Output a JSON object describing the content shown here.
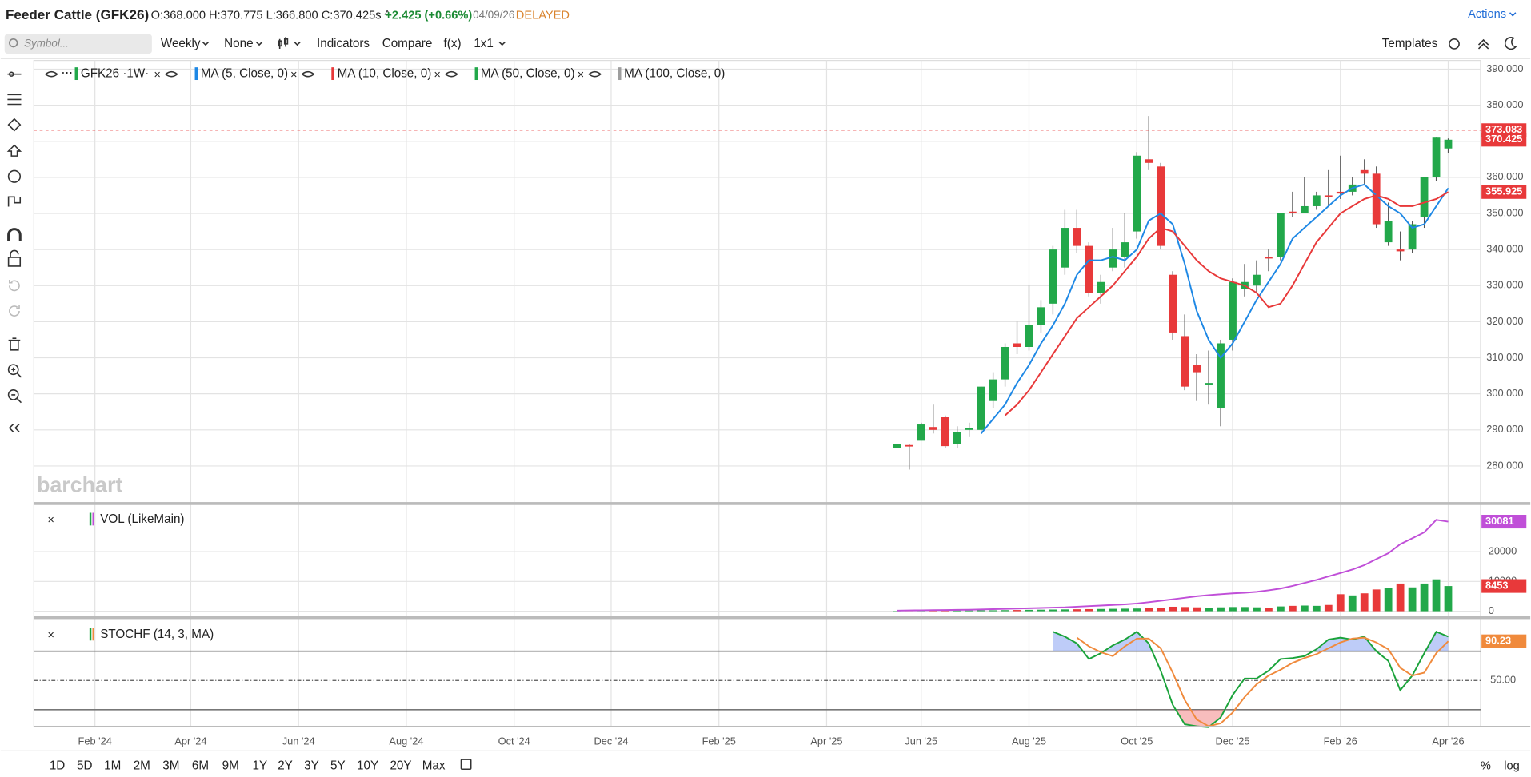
{
  "header": {
    "title": "Feeder Cattle (GFK26)",
    "ohlc": "O:368.000 H:370.775 L:366.800 C:370.425s ^",
    "change": "+2.425 (+0.66%)",
    "date": "04/09/26",
    "status": "DELAYED",
    "actions": "Actions"
  },
  "toolbar": {
    "symbol": "Symbol...",
    "interval": "Weekly",
    "style": "None",
    "indicators": "Indicators",
    "compare": "Compare",
    "fx": "f(x)",
    "layout": "1x1",
    "templates": "Templates"
  },
  "periods": [
    "1D",
    "5D",
    "1M",
    "2M",
    "3M",
    "6M",
    "9M",
    "1Y",
    "2Y",
    "3Y",
    "5Y",
    "10Y",
    "20Y",
    "Max"
  ],
  "scale_options": [
    "%",
    "log"
  ],
  "watermark": "barchart",
  "chart_data": [
    {
      "type": "candlestick",
      "symbol": "GFK26 ·1W·",
      "up_color": "#22a84a",
      "down_color": "#e8393a",
      "open": [
        285,
        285.8,
        287,
        290.8,
        293.5,
        286,
        290,
        290,
        298,
        304,
        314,
        313,
        319,
        325,
        335,
        346,
        341,
        328,
        335,
        338,
        345,
        365,
        363,
        333,
        316,
        308,
        303,
        296,
        315,
        329,
        330,
        338,
        338,
        350.5,
        350,
        352,
        355,
        356,
        356,
        362,
        361,
        342,
        340,
        340,
        349,
        360,
        368
      ],
      "high": [
        286,
        286,
        292,
        297,
        294,
        291,
        292,
        302,
        306,
        314,
        320,
        330,
        326,
        341,
        351,
        351,
        342,
        333,
        346,
        350,
        367,
        377,
        364,
        334,
        322,
        311,
        312,
        315,
        332,
        336,
        337,
        340,
        350,
        356,
        360,
        356,
        362,
        366,
        360,
        365,
        363,
        353,
        345,
        348,
        360,
        371,
        370.775
      ],
      "low": [
        285,
        279,
        287,
        289,
        285,
        285,
        288,
        289,
        296,
        302,
        311,
        312,
        317,
        322,
        333,
        339,
        327,
        325,
        334,
        335,
        343,
        362,
        340,
        315,
        301,
        298,
        297,
        291,
        312,
        327,
        328,
        334,
        337,
        349,
        350,
        351,
        352,
        354,
        355,
        358,
        346,
        341,
        337,
        339,
        346,
        359,
        366.8
      ],
      "close": [
        286,
        285.6,
        291.5,
        290,
        285.5,
        289.5,
        290.5,
        302,
        304,
        313,
        313,
        319,
        324,
        340,
        346,
        341,
        328,
        331,
        340,
        342,
        366,
        364,
        341,
        317,
        302,
        306,
        303,
        314,
        331,
        331,
        333,
        337.5,
        350,
        350,
        352,
        355,
        354.5,
        355.5,
        358,
        361,
        347,
        348,
        339.5,
        347,
        360,
        371,
        370.425
      ],
      "close_label": "370.425",
      "series": [
        {
          "name": "MA (5, Close, 0)",
          "color": "#1e88e5",
          "values": [
            null,
            null,
            null,
            null,
            null,
            null,
            null,
            289,
            293,
            297,
            303,
            308,
            314,
            319,
            325,
            333,
            337,
            337,
            338,
            337,
            340,
            348,
            350,
            347,
            336,
            323,
            315,
            310,
            314,
            320,
            326,
            331,
            336,
            343,
            346,
            349,
            352,
            355,
            357,
            358,
            355,
            352,
            350,
            346,
            347,
            352,
            357
          ]
        },
        {
          "name": "MA (10, Close, 0)",
          "color": "#e8393a",
          "values": [
            null,
            null,
            null,
            null,
            null,
            null,
            null,
            null,
            null,
            294,
            297,
            301,
            306,
            311,
            316,
            321,
            324,
            327,
            330,
            334,
            338,
            343,
            346,
            345,
            341,
            337,
            334,
            332,
            331,
            330,
            328,
            324,
            325,
            330,
            336,
            342,
            346,
            350,
            352,
            354,
            355,
            354,
            352,
            352,
            353,
            354,
            355.925
          ],
          "last_label": "355.925"
        }
      ],
      "legend_extra": [
        {
          "name": "MA (50, Close, 0)",
          "color": "#22a84a"
        },
        {
          "name": "MA (100, Close, 0)",
          "color": "#9e9e9e"
        }
      ],
      "marker": {
        "value": 373.083,
        "label": "373.083",
        "color": "#e8393a"
      },
      "xlim": [
        -72.1,
        48.7
      ],
      "xticks": [
        {
          "value": -67,
          "label": "Feb '24"
        },
        {
          "value": -59,
          "label": "Apr '24"
        },
        {
          "value": -50,
          "label": "Jun '24"
        },
        {
          "value": -41,
          "label": "Aug '24"
        },
        {
          "value": -32,
          "label": "Oct '24"
        },
        {
          "value": -23.9,
          "label": "Dec '24"
        },
        {
          "value": -14.9,
          "label": "Feb '25"
        },
        {
          "value": -5.9,
          "label": "Apr '25"
        },
        {
          "value": 2,
          "label": "Jun '25"
        },
        {
          "value": 11,
          "label": "Aug '25"
        },
        {
          "value": 20,
          "label": "Oct '25"
        },
        {
          "value": 28,
          "label": "Dec '25"
        },
        {
          "value": 37,
          "label": "Feb '26"
        },
        {
          "value": 46,
          "label": "Apr '26"
        }
      ],
      "ylim": [
        270,
        392.4
      ],
      "yticks": [
        {
          "value": 280,
          "label": "280.000"
        },
        {
          "value": 290,
          "label": "290.000"
        },
        {
          "value": 300,
          "label": "300.000"
        },
        {
          "value": 310,
          "label": "310.000"
        },
        {
          "value": 320,
          "label": "320.000"
        },
        {
          "value": 330,
          "label": "330.000"
        },
        {
          "value": 340,
          "label": "340.000"
        },
        {
          "value": 350,
          "label": "350.000"
        },
        {
          "value": 360,
          "label": "360.000"
        },
        {
          "value": 370,
          "label": "370.000"
        },
        {
          "value": 380,
          "label": "380.000"
        },
        {
          "value": 390,
          "label": "390.000"
        }
      ],
      "grid": true
    },
    {
      "type": "bar",
      "title": "VOL (LikeMain)",
      "values": [
        100,
        150,
        150,
        200,
        200,
        250,
        250,
        300,
        300,
        350,
        400,
        450,
        500,
        550,
        600,
        650,
        700,
        750,
        800,
        850,
        900,
        1000,
        1200,
        1500,
        1400,
        1300,
        1200,
        1300,
        1400,
        1400,
        1300,
        1200,
        1600,
        1800,
        1900,
        1800,
        2100,
        5700,
        5300,
        6000,
        7300,
        7700,
        9300,
        8000,
        9300,
        10700,
        8453
      ],
      "last_label": "8453",
      "line": {
        "color": "#c04fd8",
        "values": [
          200,
          250,
          300,
          350,
          400,
          450,
          500,
          600,
          700,
          800,
          900,
          1000,
          1100,
          1200,
          1300,
          1500,
          1700,
          1900,
          2100,
          2300,
          2600,
          3000,
          3500,
          4000,
          4500,
          5000,
          5400,
          5700,
          6000,
          6200,
          6500,
          7000,
          7600,
          8500,
          9500,
          10500,
          11700,
          12800,
          14000,
          15500,
          17500,
          19500,
          22500,
          24500,
          26500,
          30700,
          30081
        ],
        "last_label": "30081"
      },
      "ylim": [
        -1667,
        35667
      ],
      "yticks": [
        0,
        10000,
        20000
      ]
    },
    {
      "type": "line",
      "title": "STOCHF (14, 3, MA)",
      "series": [
        {
          "color": "#1aa33a",
          "values": [
            null,
            null,
            null,
            null,
            null,
            null,
            null,
            null,
            null,
            null,
            null,
            null,
            null,
            100,
            95,
            88,
            72,
            78,
            86,
            92,
            100,
            88,
            60,
            25,
            5,
            3,
            2,
            12,
            35,
            52,
            52,
            60,
            72,
            73,
            75,
            82,
            92,
            94,
            92,
            95,
            80,
            70,
            40,
            55,
            78,
            100,
            95
          ]
        },
        {
          "color": "#f08a3c",
          "values": [
            null,
            null,
            null,
            null,
            null,
            null,
            null,
            null,
            null,
            null,
            null,
            null,
            null,
            null,
            null,
            94,
            85,
            79,
            75,
            85,
            93,
            93,
            83,
            58,
            30,
            10,
            3,
            6,
            17,
            33,
            46,
            55,
            61,
            68,
            73,
            77,
            83,
            89,
            93,
            94,
            89,
            82,
            63,
            55,
            58,
            78,
            90.23
          ],
          "last_label": "90.23"
        }
      ],
      "bands": [
        20,
        80
      ],
      "overbought_color": "#6f8ff0",
      "oversold_color": "#f06c6c",
      "ylim": [
        3,
        113
      ],
      "yticks": [
        {
          "value": 50,
          "label": "50.00"
        }
      ]
    }
  ]
}
